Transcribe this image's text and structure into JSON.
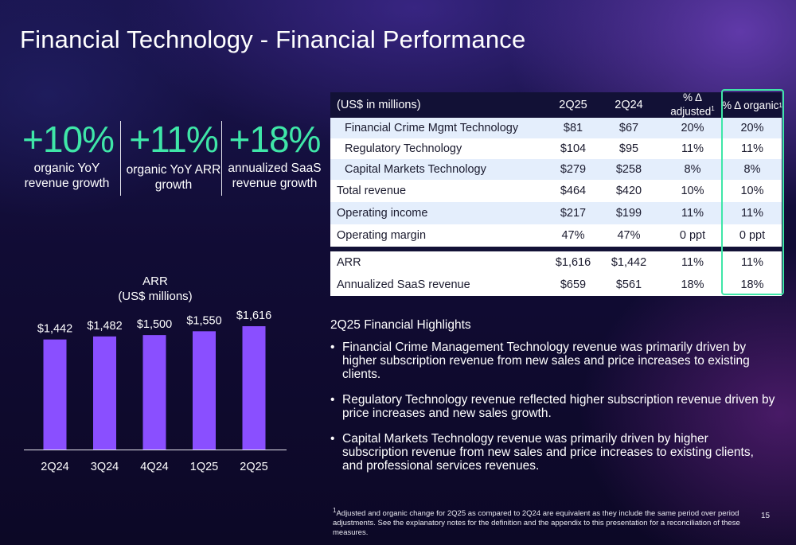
{
  "title": "Financial Technology - Financial Performance",
  "kpis": [
    {
      "value": "+10%",
      "label_line1": "organic YoY",
      "label_line2": "revenue growth"
    },
    {
      "value": "+11%",
      "label_line1": "organic YoY ARR",
      "label_line2": "growth"
    },
    {
      "value": "+18%",
      "label_line1": "annualized SaaS",
      "label_line2": "revenue growth"
    }
  ],
  "colors": {
    "accent_green": "#3fe6a8",
    "bar_purple": "#8a4fff",
    "header_navy": "#121136",
    "row_blue": "#e4eefc"
  },
  "chart_data": {
    "type": "bar",
    "title_line1": "ARR",
    "title_line2": "(US$ millions)",
    "categories": [
      "2Q24",
      "3Q24",
      "4Q24",
      "1Q25",
      "2Q25"
    ],
    "values": [
      1442,
      1482,
      1500,
      1550,
      1616
    ],
    "value_labels": [
      "$1,442",
      "$1,482",
      "$1,500",
      "$1,550",
      "$1,616"
    ],
    "ylim": [
      0,
      1616
    ],
    "grid": false,
    "legend": "none"
  },
  "table": {
    "headers": {
      "label": "(US$ in millions)",
      "col1": "2Q25",
      "col2": "2Q24",
      "col3_line1": "% Δ",
      "col3_line2": "adjusted",
      "col3_sup": "1",
      "col4": "% Δ organic",
      "col4_sup": "1"
    },
    "rows": [
      {
        "label": "Financial Crime Mgmt Technology",
        "c1": "$81",
        "c2": "$67",
        "c3": "20%",
        "c4": "20%"
      },
      {
        "label": "Regulatory Technology",
        "c1": "$104",
        "c2": "$95",
        "c3": "11%",
        "c4": "11%"
      },
      {
        "label": "Capital Markets Technology",
        "c1": "$279",
        "c2": "$258",
        "c3": "8%",
        "c4": "8%"
      },
      {
        "label": "Total revenue",
        "c1": "$464",
        "c2": "$420",
        "c3": "10%",
        "c4": "10%"
      },
      {
        "label": "Operating income",
        "c1": "$217",
        "c2": "$199",
        "c3": "11%",
        "c4": "11%"
      },
      {
        "label": "Operating margin",
        "c1": "47%",
        "c2": "47%",
        "c3": "0 ppt",
        "c4": "0 ppt"
      },
      {
        "label": "ARR",
        "c1": "$1,616",
        "c2": "$1,442",
        "c3": "11%",
        "c4": "11%"
      },
      {
        "label": "Annualized SaaS revenue",
        "c1": "$659",
        "c2": "$561",
        "c3": "18%",
        "c4": "18%"
      }
    ]
  },
  "highlights": {
    "title": "2Q25 Financial Highlights",
    "bullets": [
      "Financial Crime Management Technology revenue was primarily driven by higher subscription revenue from new sales and price increases to existing clients.",
      "Regulatory Technology revenue reflected higher subscription revenue driven by price increases and new sales growth.",
      "Capital Markets Technology revenue was primarily driven by higher subscription revenue from new sales and price increases to existing clients, and professional services revenues."
    ]
  },
  "footnote_sup": "1",
  "footnote": "Adjusted and organic change for 2Q25 as compared to 2Q24 are equivalent as they include the same period over period adjustments. See the explanatory notes for the definition and the appendix to this presentation for a reconciliation of these measures.",
  "page_number": "15"
}
